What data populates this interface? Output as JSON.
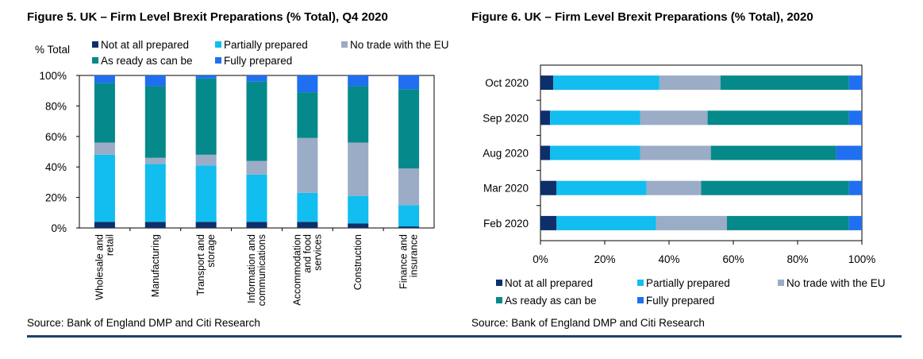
{
  "colors": {
    "not_at_all_prepared": "#0d2f6b",
    "partially_prepared": "#12bdf0",
    "no_trade_with_eu": "#9aacc6",
    "as_ready_as_can_be": "#05898a",
    "fully_prepared": "#1f6ff0"
  },
  "figure5": {
    "title": "Figure 5. UK – Firm Level Brexit Preparations (% Total), Q4 2020",
    "source": "Source: Bank of England DMP and Citi Research"
  },
  "figure6": {
    "title": "Figure 6. UK – Firm Level Brexit Preparations (% Total), 2020",
    "source": "Source: Bank of England DMP and Citi Research"
  },
  "chart_data": [
    {
      "type": "bar",
      "stacked": true,
      "orientation": "vertical",
      "title": "Figure 5. UK – Firm Level Brexit Preparations (% Total), Q4 2020",
      "ylabel": "% Total",
      "ylim": [
        0,
        100
      ],
      "yticks": [
        "0%",
        "20%",
        "40%",
        "60%",
        "80%",
        "100%"
      ],
      "categories": [
        [
          "Wholesale and",
          "retail"
        ],
        [
          "Manufacturing"
        ],
        [
          "Transport and",
          "storage"
        ],
        [
          "Information and",
          "communications"
        ],
        [
          "Accommodation",
          "and food",
          "services"
        ],
        [
          "Construction"
        ],
        [
          "Finance and",
          "insurance"
        ]
      ],
      "legend": [
        "Not at all prepared",
        "Partially prepared",
        "No trade with the EU",
        "As ready as can be",
        "Fully prepared"
      ],
      "series": [
        {
          "name": "Not at all prepared",
          "color_key": "not_at_all_prepared",
          "values": [
            4,
            4,
            4,
            4,
            4,
            3,
            1
          ]
        },
        {
          "name": "Partially prepared",
          "color_key": "partially_prepared",
          "values": [
            44,
            38,
            37,
            31,
            19,
            18,
            14
          ]
        },
        {
          "name": "No trade with the EU",
          "color_key": "no_trade_with_eu",
          "values": [
            8,
            4,
            7,
            9,
            36,
            35,
            24
          ]
        },
        {
          "name": "As ready as can be",
          "color_key": "as_ready_as_can_be",
          "values": [
            39,
            47,
            50,
            52,
            30,
            37,
            52
          ]
        },
        {
          "name": "Fully prepared",
          "color_key": "fully_prepared",
          "values": [
            5,
            7,
            2,
            4,
            11,
            7,
            9
          ]
        }
      ]
    },
    {
      "type": "bar",
      "stacked": true,
      "orientation": "horizontal",
      "title": "Figure 6. UK – Firm Level Brexit Preparations (% Total), 2020",
      "xlim": [
        0,
        100
      ],
      "xticks": [
        "0%",
        "20%",
        "40%",
        "60%",
        "80%",
        "100%"
      ],
      "categories": [
        "Oct 2020",
        "Sep 2020",
        "Aug 2020",
        "Mar 2020",
        "Feb 2020"
      ],
      "legend": [
        "Not at all prepared",
        "Partially prepared",
        "No trade with the EU",
        "As ready as can be",
        "Fully prepared"
      ],
      "series": [
        {
          "name": "Not at all prepared",
          "color_key": "not_at_all_prepared",
          "values": [
            4,
            3,
            3,
            5,
            5
          ]
        },
        {
          "name": "Partially prepared",
          "color_key": "partially_prepared",
          "values": [
            33,
            28,
            28,
            28,
            31
          ]
        },
        {
          "name": "No trade with the EU",
          "color_key": "no_trade_with_eu",
          "values": [
            19,
            21,
            22,
            17,
            22
          ]
        },
        {
          "name": "As ready as can be",
          "color_key": "as_ready_as_can_be",
          "values": [
            40,
            44,
            39,
            46,
            38
          ]
        },
        {
          "name": "Fully prepared",
          "color_key": "fully_prepared",
          "values": [
            4,
            4,
            8,
            4,
            4
          ]
        }
      ]
    }
  ]
}
